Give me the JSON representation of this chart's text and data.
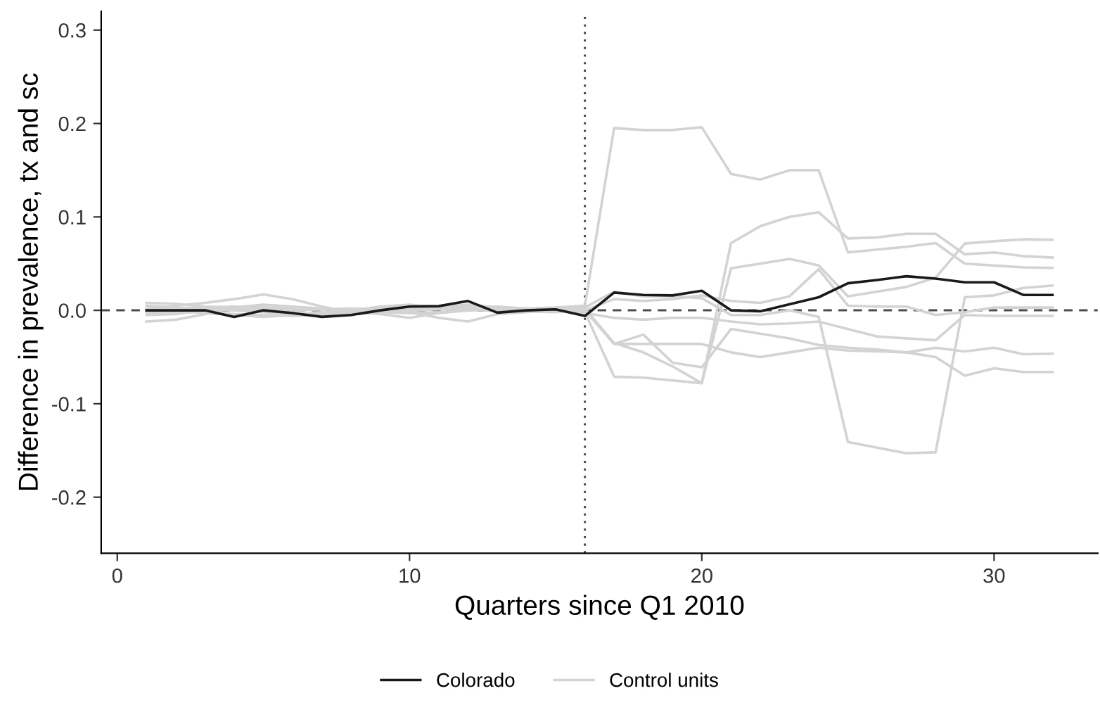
{
  "chart_data": {
    "type": "line",
    "xlabel": "Quarters since Q1 2010",
    "ylabel": "Difference in prevalence, tx and sc",
    "x": [
      1,
      2,
      3,
      4,
      5,
      6,
      7,
      8,
      9,
      10,
      11,
      12,
      13,
      14,
      15,
      16,
      17,
      18,
      19,
      20,
      21,
      22,
      23,
      24,
      25,
      26,
      27,
      28,
      29,
      30,
      31,
      32
    ],
    "series": [
      {
        "name": "Colorado",
        "color": "#1a1a1a",
        "values": [
          0,
          0,
          0,
          -0.007,
          0,
          -0.003,
          -0.007,
          -0.005,
          0,
          0.004,
          0.0045,
          0.01,
          -0.0025,
          0,
          0.001,
          -0.006,
          0.019,
          0.0165,
          0.016,
          0.021,
          0,
          -0.001,
          0.0065,
          0.014,
          0.029,
          0.0325,
          0.0365,
          0.034,
          0.03,
          0.03,
          0.0165,
          0.0165
        ]
      },
      {
        "name": "Control units",
        "color": "#d3d3d3",
        "values": [
          0.008,
          0.007,
          0.004,
          0.003,
          0.002,
          0,
          0.001,
          0.002,
          0.001,
          0,
          0.001,
          0.002,
          0,
          0.002,
          0.003,
          0.005,
          0.195,
          0.193,
          0.193,
          0.196,
          0.146,
          0.14,
          0.15,
          0.15,
          0.062,
          0.065,
          0.068,
          0.072,
          0.05,
          0.048,
          0.046,
          0.0455
        ]
      },
      {
        "color": "#d3d3d3",
        "values": [
          -0.012,
          -0.01,
          -0.004,
          0.003,
          0.006,
          0.004,
          0.002,
          0,
          -0.002,
          -0.003,
          -0.002,
          0,
          0.001,
          0,
          0.002,
          0.002,
          -0.035,
          -0.045,
          -0.06,
          -0.078,
          0.072,
          0.09,
          0.1,
          0.105,
          0.077,
          0.078,
          0.082,
          0.082,
          0.06,
          0.062,
          0.058,
          0.0565
        ]
      },
      {
        "color": "#d3d3d3",
        "values": [
          0.002,
          0.005,
          0.008,
          0.012,
          0.017,
          0.012,
          0.004,
          -0.002,
          -0.004,
          -0.008,
          -0.003,
          0,
          0.002,
          0.001,
          0,
          -0.002,
          -0.071,
          -0.072,
          -0.075,
          -0.078,
          0.045,
          0.05,
          0.055,
          0.048,
          0.015,
          0.02,
          0.025,
          0.035,
          0.0715,
          0.074,
          0.076,
          0.0755
        ]
      },
      {
        "color": "#d3d3d3",
        "values": [
          -0.005,
          -0.004,
          0,
          0.002,
          0,
          -0.003,
          -0.005,
          -0.004,
          -0.002,
          0.002,
          0.003,
          0.002,
          -0.001,
          0,
          0.001,
          0.003,
          0.02,
          0.015,
          0.015,
          0.013,
          -0.005,
          -0.005,
          0,
          -0.007,
          -0.141,
          -0.147,
          -0.153,
          -0.152,
          0.014,
          0.016,
          0.024,
          0.0265
        ]
      },
      {
        "color": "#d3d3d3",
        "values": [
          0.005,
          0.003,
          0.002,
          0,
          -0.002,
          -0.004,
          -0.003,
          0,
          0.003,
          0.005,
          0.004,
          0.006,
          0.003,
          0.002,
          0.001,
          0,
          0.012,
          0.01,
          0.012,
          0.016,
          0.01,
          0.008,
          0.015,
          0.044,
          0.005,
          0.004,
          0.004,
          -0.005,
          -0.002,
          0.003,
          0.003,
          0.003
        ]
      },
      {
        "color": "#d3d3d3",
        "values": [
          -0.003,
          -0.002,
          -0.002,
          -0.004,
          -0.005,
          -0.006,
          -0.005,
          -0.003,
          -0.002,
          0,
          0.002,
          0.004,
          0.004,
          0.002,
          0,
          -0.003,
          -0.008,
          -0.01,
          -0.008,
          -0.008,
          -0.012,
          -0.015,
          -0.014,
          -0.012,
          -0.02,
          -0.028,
          -0.03,
          -0.032,
          -0.005,
          -0.006,
          -0.006,
          -0.006
        ]
      },
      {
        "color": "#d3d3d3",
        "values": [
          0.001,
          0,
          -0.003,
          -0.005,
          -0.007,
          -0.005,
          -0.002,
          -0.001,
          0,
          -0.002,
          -0.008,
          -0.012,
          -0.004,
          -0.002,
          0,
          0,
          -0.036,
          -0.026,
          -0.056,
          -0.061,
          -0.02,
          -0.025,
          -0.03,
          -0.037,
          -0.04,
          -0.042,
          -0.045,
          -0.05,
          -0.07,
          -0.062,
          -0.066,
          -0.066
        ]
      },
      {
        "color": "#d3d3d3",
        "values": [
          0,
          0.002,
          0.003,
          0.004,
          0.003,
          0.002,
          0.001,
          0,
          0.004,
          0.006,
          0.003,
          0.001,
          0,
          -0.001,
          -0.002,
          0.001,
          -0.036,
          -0.036,
          -0.036,
          -0.036,
          -0.045,
          -0.05,
          -0.045,
          -0.04,
          -0.043,
          -0.044,
          -0.045,
          -0.04,
          -0.044,
          -0.04,
          -0.047,
          -0.0465
        ]
      }
    ],
    "xlim": [
      -0.55,
      33.55
    ],
    "ylim": [
      -0.26,
      0.32
    ],
    "xticks": [
      0,
      10,
      20,
      30
    ],
    "yticks": [
      {
        "value": -0.2,
        "label": "-0.2"
      },
      {
        "value": -0.1,
        "label": "-0.1"
      },
      {
        "value": 0,
        "label": "0.0"
      },
      {
        "value": 0.1,
        "label": "0.1"
      },
      {
        "value": 0.2,
        "label": "0.2"
      },
      {
        "value": 0.3,
        "label": "0.3"
      }
    ],
    "ref_lines": [
      {
        "axis": "y",
        "value": 0,
        "color": "#4d4d4d",
        "line_style": "dashed"
      },
      {
        "axis": "x",
        "value": 16,
        "color": "#4d4d4d",
        "line_style": "dotted"
      }
    ],
    "grid": false,
    "legend": "bottom",
    "marker": "none",
    "line_style": "solid"
  }
}
